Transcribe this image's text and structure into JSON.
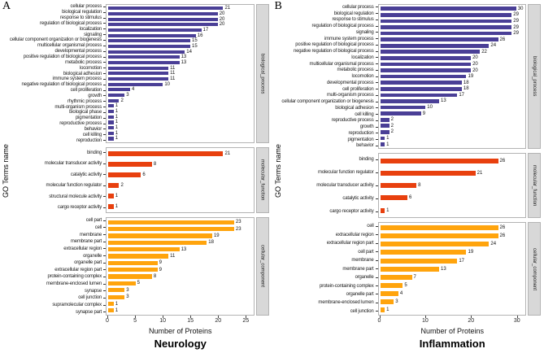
{
  "figure": {
    "ylabel": "GO Terms name",
    "xlabel": "Number of Proteins"
  },
  "colors": {
    "biological_process": "#4a3f96",
    "molecular_function": "#e8400e",
    "cellular_component": "#ffa40d",
    "strip_background": "#d8d8d8",
    "panel_border": "#b3b3b3"
  },
  "chart_data": [
    {
      "type": "bar",
      "orientation": "horizontal",
      "panel_letter": "A",
      "title": "Neurology",
      "xlabel": "Number of Proteins",
      "ylabel": "GO Terms name",
      "xticks": [
        0,
        5,
        10,
        15,
        20,
        25
      ],
      "xlim": [
        0,
        26.5
      ],
      "legend": "none",
      "facets": [
        {
          "strip_label": "biological_process",
          "color": "#4a3f96",
          "categories": [
            "cellular process",
            "biological regulation",
            "response to stimulus",
            "regulation of biological process",
            "localization",
            "signaling",
            "cellular component organization or biogenesis",
            "multicellular organismal process",
            "developmental process",
            "positive regulation of biological process",
            "metabolic process",
            "locomotion",
            "biological adhesion",
            "immune system process",
            "negative regulation of biological process",
            "cell proliferation",
            "growth",
            "rhythmic process",
            "multi-organism process",
            "biological phase",
            "pigmentation",
            "reproductive process",
            "behavior",
            "cell killing",
            "reproduction"
          ],
          "values": [
            21,
            20,
            20,
            20,
            17,
            16,
            15,
            15,
            14,
            13,
            13,
            11,
            11,
            11,
            10,
            4,
            3,
            2,
            1,
            1,
            1,
            1,
            1,
            1,
            1
          ]
        },
        {
          "strip_label": "molecular_function",
          "color": "#e8400e",
          "categories": [
            "binding",
            "molecular transducer activity",
            "catalytic activity",
            "molecular function regulator",
            "structural molecule activity",
            "cargo receptor activity"
          ],
          "values": [
            21,
            8,
            6,
            2,
            1,
            1
          ]
        },
        {
          "strip_label": "cellular_component",
          "color": "#ffa40d",
          "categories": [
            "cell part",
            "cell",
            "membrane",
            "membrane part",
            "extracellular region",
            "organelle",
            "organelle part",
            "extracellular region part",
            "protein-containing complex",
            "membrane-enclosed lumen",
            "synapse",
            "cell junction",
            "supramolecular complex",
            "synapse part"
          ],
          "values": [
            23,
            23,
            19,
            18,
            13,
            11,
            9,
            9,
            8,
            5,
            3,
            3,
            1,
            1
          ]
        }
      ]
    },
    {
      "type": "bar",
      "orientation": "horizontal",
      "panel_letter": "B",
      "title": "Inflammation",
      "xlabel": "Number of Proteins",
      "ylabel": "GO Terms name",
      "xticks": [
        0,
        10,
        20,
        30
      ],
      "xlim": [
        0,
        32
      ],
      "legend": "none",
      "facets": [
        {
          "strip_label": "biological_process",
          "color": "#4a3f96",
          "categories": [
            "cellular process",
            "biological regulation",
            "response to stimulus",
            "regulation of biological process",
            "signaling",
            "immune system process",
            "positive regulation of biological process",
            "negative regulation of biological process",
            "localization",
            "multicellular organismal process",
            "metabolic process",
            "locomotion",
            "developmental process",
            "cell proliferation",
            "multi-organism process",
            "cellular component organization or biogenesis",
            "biological adhesion",
            "cell killing",
            "reproductive process",
            "growth",
            "reproduction",
            "pigmentation",
            "behavior"
          ],
          "values": [
            30,
            29,
            29,
            29,
            29,
            26,
            24,
            22,
            20,
            20,
            20,
            19,
            18,
            18,
            17,
            13,
            10,
            9,
            2,
            2,
            2,
            1,
            1
          ]
        },
        {
          "strip_label": "molecular_function",
          "color": "#e8400e",
          "categories": [
            "binding",
            "molecular function regulator",
            "molecular transducer activity",
            "catalytic activity",
            "cargo receptor activity"
          ],
          "values": [
            26,
            21,
            8,
            6,
            1
          ]
        },
        {
          "strip_label": "cellular_component",
          "color": "#ffa40d",
          "categories": [
            "cell",
            "extracellular region",
            "extracellular region part",
            "cell part",
            "membrane",
            "membrane part",
            "organelle",
            "protein-containing complex",
            "organelle part",
            "membrane-enclosed lumen",
            "cell junction"
          ],
          "values": [
            26,
            26,
            24,
            19,
            17,
            13,
            7,
            5,
            4,
            3,
            1
          ]
        }
      ]
    }
  ]
}
